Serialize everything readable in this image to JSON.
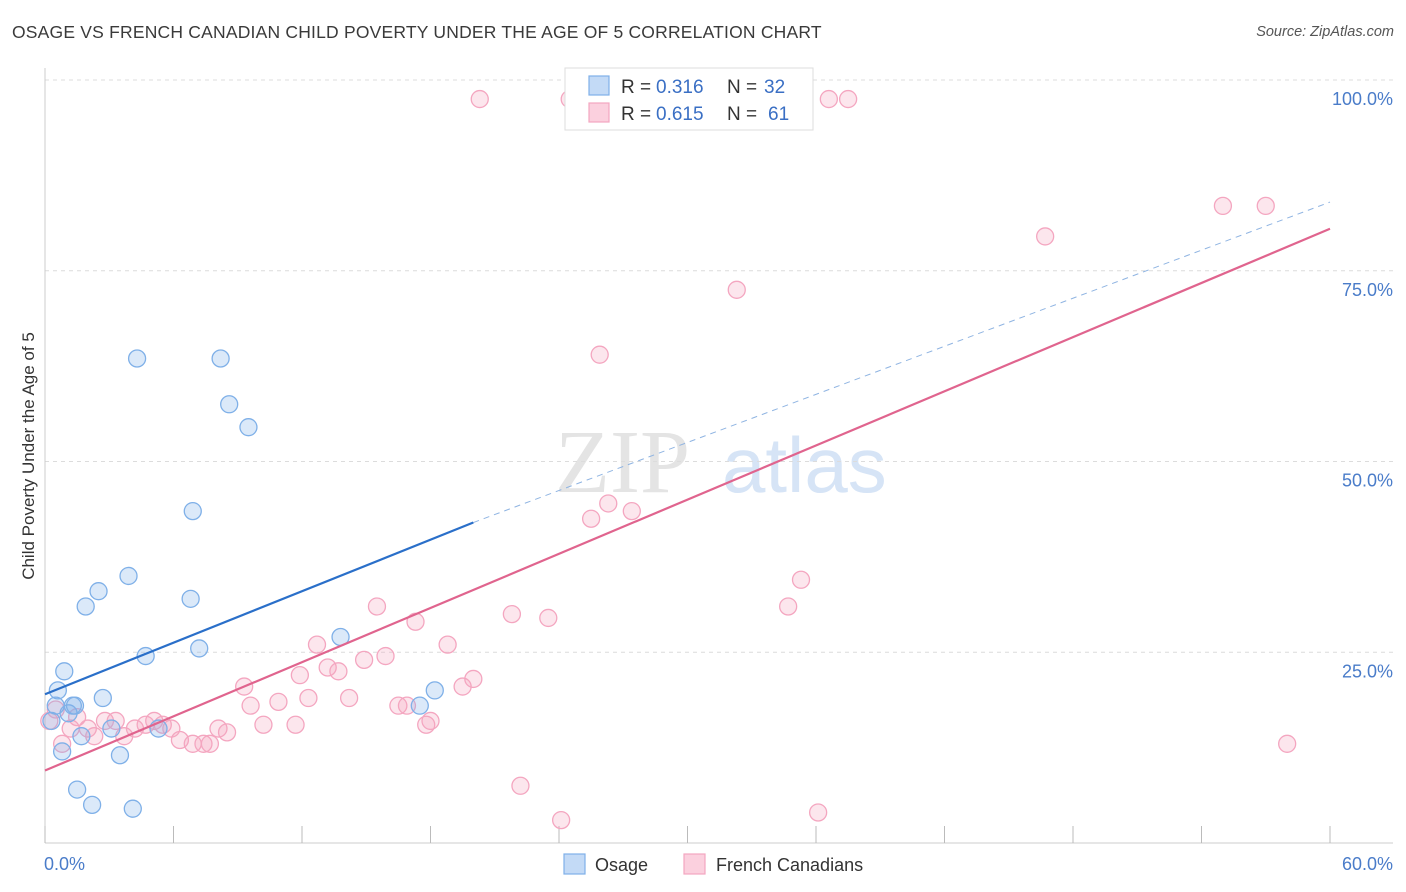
{
  "title": "OSAGE VS FRENCH CANADIAN CHILD POVERTY UNDER THE AGE OF 5 CORRELATION CHART",
  "source": "Source: ZipAtlas.com",
  "watermark": {
    "zip": "ZIP",
    "atlas": "atlas"
  },
  "chart_data": {
    "type": "scatter",
    "xlabel": "",
    "ylabel": "Child Poverty Under the Age of 5",
    "xlim": [
      0,
      60
    ],
    "ylim": [
      0,
      100
    ],
    "x_tick_labels": [
      "0.0%",
      "60.0%"
    ],
    "y_ticks": [
      25,
      50,
      75,
      100
    ],
    "y_tick_labels": [
      "25.0%",
      "50.0%",
      "75.0%",
      "100.0%"
    ],
    "grid": true,
    "legend_placement": "top-center",
    "series": [
      {
        "name": "Osage",
        "color": "#7fb0e8",
        "line_color": "#2a6fc9",
        "R": "0.316",
        "N": "32",
        "r_label": "R =",
        "n_label": "N =",
        "trend": {
          "x": [
            0,
            20
          ],
          "y": [
            19.5,
            42
          ],
          "dashed_extension_to_x": 60,
          "dashed_end_y": 84
        },
        "points": [
          [
            0.3,
            16
          ],
          [
            0.5,
            18
          ],
          [
            0.6,
            20
          ],
          [
            0.8,
            12
          ],
          [
            0.9,
            22.5
          ],
          [
            1.1,
            17
          ],
          [
            1.3,
            18
          ],
          [
            1.4,
            18
          ],
          [
            1.5,
            7
          ],
          [
            1.7,
            14
          ],
          [
            1.9,
            31
          ],
          [
            2.2,
            5
          ],
          [
            2.5,
            33
          ],
          [
            2.7,
            19
          ],
          [
            3.1,
            15
          ],
          [
            3.5,
            11.5
          ],
          [
            3.9,
            35
          ],
          [
            4.1,
            4.5
          ],
          [
            4.3,
            63.5
          ],
          [
            4.7,
            24.5
          ],
          [
            5.3,
            15
          ],
          [
            6.8,
            32
          ],
          [
            6.9,
            43.5
          ],
          [
            7.2,
            25.5
          ],
          [
            8.2,
            63.5
          ],
          [
            8.6,
            57.5
          ],
          [
            9.5,
            54.5
          ],
          [
            13.8,
            27
          ],
          [
            17.5,
            18
          ],
          [
            18.2,
            20
          ]
        ]
      },
      {
        "name": "French Canadians",
        "color": "#f4a6c0",
        "line_color": "#e0648e",
        "R": "0.615",
        "N": "61",
        "r_label": "R =",
        "n_label": "N =",
        "trend": {
          "x": [
            0,
            60
          ],
          "y": [
            9.5,
            80.5
          ]
        },
        "points": [
          [
            0.2,
            16
          ],
          [
            0.5,
            17.5
          ],
          [
            0.8,
            13
          ],
          [
            1.2,
            15
          ],
          [
            1.5,
            16.5
          ],
          [
            2.0,
            15
          ],
          [
            2.3,
            14
          ],
          [
            2.8,
            16
          ],
          [
            3.3,
            16
          ],
          [
            3.7,
            14
          ],
          [
            4.2,
            15
          ],
          [
            4.7,
            15.5
          ],
          [
            5.1,
            16
          ],
          [
            5.5,
            15.5
          ],
          [
            5.9,
            15
          ],
          [
            6.3,
            13.5
          ],
          [
            6.9,
            13
          ],
          [
            7.4,
            13
          ],
          [
            7.7,
            13
          ],
          [
            8.1,
            15
          ],
          [
            8.5,
            14.5
          ],
          [
            9.3,
            20.5
          ],
          [
            9.6,
            18
          ],
          [
            10.2,
            15.5
          ],
          [
            10.9,
            18.5
          ],
          [
            11.7,
            15.5
          ],
          [
            11.9,
            22
          ],
          [
            12.3,
            19
          ],
          [
            12.7,
            26
          ],
          [
            13.2,
            23
          ],
          [
            13.7,
            22.5
          ],
          [
            14.2,
            19
          ],
          [
            14.9,
            24
          ],
          [
            15.5,
            31
          ],
          [
            15.9,
            24.5
          ],
          [
            16.5,
            18
          ],
          [
            16.9,
            18
          ],
          [
            17.3,
            29
          ],
          [
            17.8,
            15.5
          ],
          [
            18.0,
            16
          ],
          [
            18.8,
            26
          ],
          [
            19.5,
            20.5
          ],
          [
            20.0,
            21.5
          ],
          [
            20.3,
            97.5
          ],
          [
            21.8,
            30
          ],
          [
            22.2,
            7.5
          ],
          [
            23.5,
            29.5
          ],
          [
            24.1,
            3
          ],
          [
            24.5,
            97.5
          ],
          [
            25.5,
            42.5
          ],
          [
            25.9,
            64
          ],
          [
            26.3,
            44.5
          ],
          [
            27.4,
            43.5
          ],
          [
            29.4,
            97.5
          ],
          [
            32.3,
            72.5
          ],
          [
            34.7,
            31
          ],
          [
            35.3,
            34.5
          ],
          [
            36.1,
            4
          ],
          [
            36.6,
            97.5
          ],
          [
            37.5,
            97.5
          ],
          [
            46.7,
            79.5
          ],
          [
            55.0,
            83.5
          ],
          [
            57.0,
            83.5
          ],
          [
            58.0,
            13
          ]
        ]
      }
    ]
  }
}
